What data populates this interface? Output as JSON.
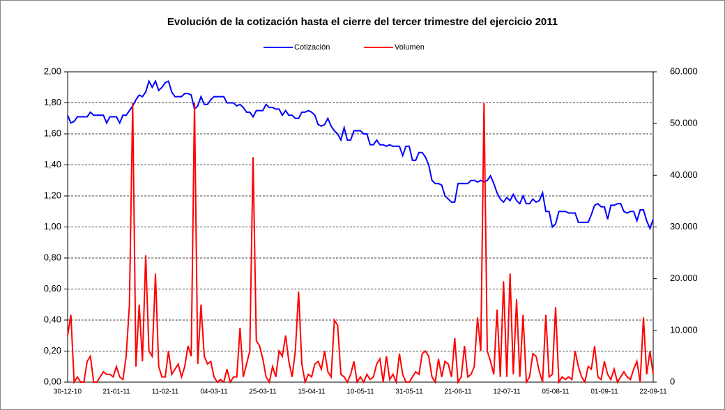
{
  "chart_data": {
    "type": "line",
    "title": "Evolución de la cotización hasta el cierre del tercer trimestre del ejercicio 2011",
    "categories": [
      "30-12-10",
      null,
      null,
      null,
      null,
      null,
      null,
      null,
      null,
      null,
      null,
      null,
      null,
      null,
      null,
      "21-01-11",
      null,
      null,
      null,
      null,
      null,
      null,
      null,
      null,
      null,
      null,
      null,
      null,
      null,
      null,
      "11-02-11",
      null,
      null,
      null,
      null,
      null,
      null,
      null,
      null,
      null,
      null,
      null,
      null,
      null,
      null,
      "04-03-11",
      null,
      null,
      null,
      null,
      null,
      null,
      null,
      null,
      null,
      null,
      null,
      null,
      null,
      null,
      "25-03-11",
      null,
      null,
      null,
      null,
      null,
      null,
      null,
      null,
      null,
      null,
      null,
      null,
      null,
      null,
      "15-04-11",
      null,
      null,
      null,
      null,
      null,
      null,
      null,
      null,
      null,
      null,
      null,
      null,
      null,
      null,
      "10-05-11",
      null,
      null,
      null,
      null,
      null,
      null,
      null,
      null,
      null,
      null,
      null,
      null,
      null,
      null,
      "31-05-11",
      null,
      null,
      null,
      null,
      null,
      null,
      null,
      null,
      null,
      null,
      null,
      null,
      null,
      null,
      "21-06-11",
      null,
      null,
      null,
      null,
      null,
      null,
      null,
      null,
      null,
      null,
      null,
      null,
      null,
      null,
      "12-07-11",
      null,
      null,
      null,
      null,
      null,
      null,
      null,
      null,
      null,
      null,
      null,
      null,
      null,
      null,
      "05-08-11",
      null,
      null,
      null,
      null,
      null,
      null,
      null,
      null,
      null,
      null,
      null,
      null,
      null,
      null,
      "01-09-11",
      null,
      null,
      null,
      null,
      null,
      null,
      null,
      null,
      null,
      null,
      null,
      null,
      null,
      null,
      "22-09-11"
    ],
    "series": [
      {
        "name": "Cotización",
        "color": "#0000ff",
        "axis": "y",
        "values": [
          1.72,
          1.67,
          1.68,
          1.71,
          1.71,
          1.71,
          1.71,
          1.74,
          1.72,
          1.72,
          1.72,
          1.72,
          1.67,
          1.71,
          1.71,
          1.71,
          1.67,
          1.72,
          1.72,
          1.75,
          1.78,
          1.82,
          1.85,
          1.84,
          1.87,
          1.94,
          1.9,
          1.94,
          1.88,
          1.9,
          1.93,
          1.94,
          1.87,
          1.84,
          1.84,
          1.84,
          1.86,
          1.86,
          1.85,
          1.76,
          1.78,
          1.84,
          1.79,
          1.79,
          1.82,
          1.84,
          1.84,
          1.84,
          1.84,
          1.8,
          1.8,
          1.8,
          1.78,
          1.79,
          1.77,
          1.74,
          1.74,
          1.71,
          1.75,
          1.75,
          1.75,
          1.79,
          1.77,
          1.77,
          1.76,
          1.76,
          1.72,
          1.75,
          1.72,
          1.72,
          1.7,
          1.7,
          1.74,
          1.74,
          1.75,
          1.74,
          1.72,
          1.66,
          1.65,
          1.66,
          1.7,
          1.65,
          1.62,
          1.6,
          1.56,
          1.64,
          1.56,
          1.56,
          1.62,
          1.62,
          1.62,
          1.6,
          1.6,
          1.53,
          1.53,
          1.56,
          1.53,
          1.53,
          1.52,
          1.53,
          1.52,
          1.52,
          1.52,
          1.46,
          1.52,
          1.52,
          1.43,
          1.43,
          1.48,
          1.48,
          1.45,
          1.4,
          1.3,
          1.28,
          1.28,
          1.27,
          1.2,
          1.18,
          1.16,
          1.16,
          1.28,
          1.28,
          1.28,
          1.28,
          1.3,
          1.3,
          1.29,
          1.3,
          1.29,
          1.3,
          1.33,
          1.28,
          1.22,
          1.18,
          1.16,
          1.19,
          1.17,
          1.21,
          1.17,
          1.15,
          1.2,
          1.15,
          1.15,
          1.18,
          1.16,
          1.17,
          1.22,
          1.1,
          1.1,
          1.0,
          1.02,
          1.1,
          1.1,
          1.1,
          1.09,
          1.09,
          1.09,
          1.03,
          1.03,
          1.03,
          1.03,
          1.08,
          1.14,
          1.15,
          1.13,
          1.13,
          1.05,
          1.14,
          1.14,
          1.15,
          1.15,
          1.1,
          1.09,
          1.1,
          1.1,
          1.04,
          1.11,
          1.11,
          1.04,
          0.99,
          1.05
        ]
      },
      {
        "name": "Volumen",
        "color": "#ff0000",
        "axis": "y2",
        "values": [
          9000,
          13000,
          0,
          1000,
          0,
          0,
          4000,
          5000,
          0,
          0,
          1000,
          2000,
          1500,
          1500,
          1000,
          3000,
          1000,
          500,
          5000,
          15000,
          54000,
          3000,
          15000,
          4000,
          24500,
          6000,
          5000,
          21000,
          3000,
          1000,
          1000,
          6000,
          1500,
          2500,
          3500,
          1000,
          3000,
          7000,
          5000,
          54000,
          3500,
          15000,
          5000,
          3500,
          4000,
          1000,
          0,
          500,
          0,
          2500,
          0,
          1000,
          1000,
          10500,
          1000,
          3500,
          6000,
          43500,
          8000,
          7000,
          4500,
          1000,
          0,
          3000,
          1000,
          6000,
          5000,
          9000,
          4000,
          1000,
          6000,
          17500,
          3500,
          0,
          1500,
          1000,
          3500,
          4000,
          2500,
          6000,
          2000,
          1000,
          12000,
          11000,
          1500,
          1000,
          0,
          1500,
          4000,
          0,
          1000,
          0,
          1500,
          500,
          1000,
          3500,
          4500,
          0,
          5000,
          500,
          1500,
          0,
          5500,
          1500,
          0,
          0,
          1000,
          2000,
          1500,
          5500,
          6000,
          5000,
          1000,
          0,
          4500,
          1000,
          4000,
          3500,
          1000,
          8500,
          0,
          1000,
          7000,
          1000,
          1500,
          3000,
          12500,
          6000,
          54000,
          6000,
          4000,
          1500,
          14000,
          1000,
          19500,
          1000,
          21000,
          1500,
          16000,
          1000,
          13000,
          0,
          1000,
          5500,
          5000,
          2000,
          0,
          13000,
          1000,
          1500,
          14500,
          0,
          1000,
          500,
          1000,
          500,
          6000,
          3000,
          1000,
          0,
          3000,
          2500,
          7000,
          1000,
          500,
          4000,
          1500,
          500,
          2500,
          0,
          1000,
          2000,
          1000,
          500,
          2500,
          4000,
          0,
          12500,
          1500,
          6000,
          1500
        ]
      }
    ],
    "ylim": [
      0,
      2
    ],
    "yticks": [
      {
        "value": 0,
        "label": "0,00"
      },
      {
        "value": 0.2,
        "label": "0,20"
      },
      {
        "value": 0.4,
        "label": "0,40"
      },
      {
        "value": 0.6,
        "label": "0,60"
      },
      {
        "value": 0.8,
        "label": "0,80"
      },
      {
        "value": 1,
        "label": "1,00"
      },
      {
        "value": 1.2,
        "label": "1,20"
      },
      {
        "value": 1.4,
        "label": "1,40"
      },
      {
        "value": 1.6,
        "label": "1,60"
      },
      {
        "value": 1.8,
        "label": "1,80"
      },
      {
        "value": 2,
        "label": "2,00"
      }
    ],
    "y2lim": [
      0,
      60000
    ],
    "y2ticks": [
      0,
      {
        "value": 10000,
        "label": "10.000"
      },
      {
        "value": 20000,
        "label": "20.000"
      },
      {
        "value": 30000,
        "label": "30.000"
      },
      {
        "value": 40000,
        "label": "40.000"
      },
      {
        "value": 50000,
        "label": "50.000"
      },
      {
        "value": 60000,
        "label": "60.000"
      }
    ],
    "grid": true,
    "legend": "top"
  }
}
